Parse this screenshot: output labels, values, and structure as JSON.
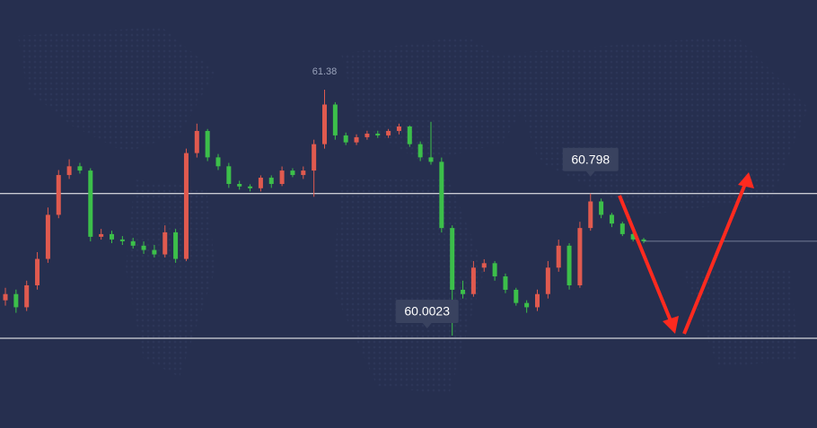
{
  "chart_data": {
    "type": "candlestick",
    "up_color": "#e05a4f",
    "down_color": "#3cbf4a",
    "open": [
      60.2,
      60.235,
      60.161,
      60.284,
      60.432,
      60.679,
      60.902,
      60.951,
      60.927,
      60.556,
      60.571,
      60.541,
      60.531,
      60.506,
      60.482,
      60.457,
      60.581,
      60.432,
      61.025,
      61.149,
      61.001,
      60.951,
      60.852,
      60.838,
      60.828,
      60.887,
      60.852,
      60.927,
      60.902,
      60.927,
      61.075,
      61.297,
      61.124,
      61.085,
      61.114,
      61.134,
      61.124,
      61.149,
      61.174,
      61.075,
      61.001,
      60.976,
      60.605,
      60.259,
      60.235,
      60.383,
      60.408,
      60.334,
      60.259,
      60.185,
      60.161,
      60.235,
      60.383,
      60.506,
      60.284,
      60.605,
      60.754,
      60.679,
      60.63,
      60.571,
      60.541
    ],
    "high": [
      60.27,
      60.26,
      60.31,
      60.47,
      60.72,
      60.93,
      60.99,
      60.97,
      60.94,
      60.6,
      60.59,
      60.56,
      60.55,
      60.53,
      60.51,
      60.62,
      60.6,
      61.05,
      61.19,
      61.16,
      61.02,
      60.97,
      60.87,
      60.85,
      60.9,
      60.9,
      60.95,
      60.94,
      60.95,
      61.1,
      61.38,
      61.31,
      61.14,
      61.13,
      61.15,
      61.15,
      61.16,
      61.19,
      61.18,
      61.09,
      61.2,
      61.0,
      60.62,
      60.31,
      60.42,
      60.43,
      60.42,
      60.35,
      60.27,
      60.2,
      60.26,
      60.42,
      60.54,
      60.52,
      60.64,
      60.798,
      60.77,
      60.69,
      60.64,
      60.58,
      60.55
    ],
    "low": [
      60.17,
      60.13,
      60.14,
      60.26,
      60.41,
      60.66,
      60.88,
      60.91,
      60.53,
      60.54,
      60.52,
      60.51,
      60.49,
      60.46,
      60.44,
      60.44,
      60.41,
      60.42,
      61.0,
      60.98,
      60.93,
      60.83,
      60.82,
      60.81,
      60.81,
      60.83,
      60.84,
      60.89,
      60.88,
      60.78,
      61.05,
      61.1,
      61.07,
      61.07,
      61.1,
      61.11,
      61.11,
      61.13,
      61.06,
      60.98,
      60.96,
      60.58,
      60.0023,
      60.21,
      60.22,
      60.36,
      60.31,
      60.24,
      60.17,
      60.13,
      60.14,
      60.21,
      60.36,
      60.26,
      60.27,
      60.59,
      60.66,
      60.61,
      60.56,
      60.53,
      60.52
    ],
    "close": [
      60.235,
      60.161,
      60.284,
      60.432,
      60.679,
      60.902,
      60.951,
      60.927,
      60.556,
      60.571,
      60.541,
      60.531,
      60.506,
      60.482,
      60.457,
      60.581,
      60.432,
      61.025,
      61.149,
      61.001,
      60.951,
      60.852,
      60.838,
      60.828,
      60.887,
      60.852,
      60.927,
      60.902,
      60.927,
      61.075,
      61.297,
      61.124,
      61.085,
      61.114,
      61.134,
      61.124,
      61.149,
      61.174,
      61.075,
      61.001,
      60.976,
      60.605,
      60.259,
      60.235,
      60.383,
      60.408,
      60.334,
      60.259,
      60.185,
      60.161,
      60.235,
      60.383,
      60.506,
      60.284,
      60.605,
      60.754,
      60.679,
      60.63,
      60.571,
      60.541,
      60.531
    ],
    "max_label": 61.38,
    "level_labels": [
      60.798,
      60.0023
    ]
  }
}
